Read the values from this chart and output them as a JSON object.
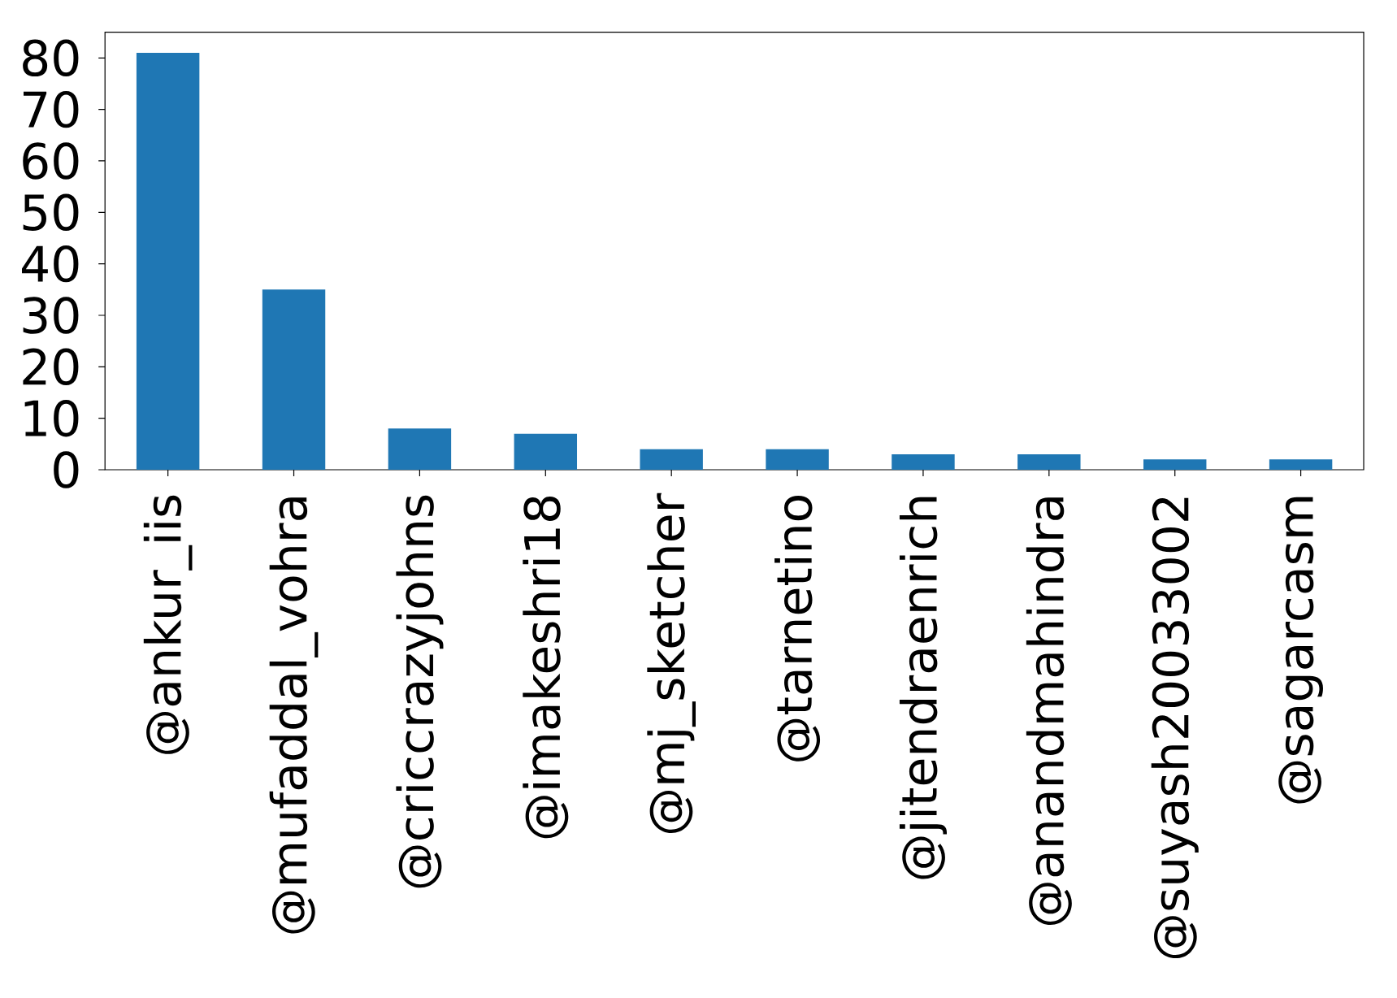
{
  "chart_data": {
    "type": "bar",
    "categories": [
      "@ankur_iis",
      "@mufaddal_vohra",
      "@criccrazyjohns",
      "@imakeshri18",
      "@mj_sketcher",
      "@tarnetino",
      "@jitendraenrich",
      "@anandmahindra",
      "@suyash20033002",
      "@sagarcasm"
    ],
    "values": [
      81,
      35,
      8,
      7,
      4,
      4,
      3,
      3,
      2,
      2
    ],
    "color": "#1f77b4",
    "ylim": [
      0,
      85
    ],
    "yticks": [
      0,
      10,
      20,
      30,
      40,
      50,
      60,
      70,
      80
    ]
  }
}
